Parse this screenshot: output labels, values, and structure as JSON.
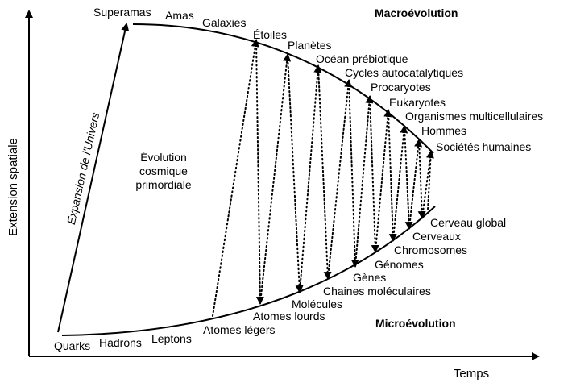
{
  "axes": {
    "y_title": "Extension spatiale",
    "x_title": "Temps"
  },
  "headers": {
    "macro": "Macroévolution",
    "micro": "Microévolution"
  },
  "expansion_label": "Expansion de l'Univers",
  "center_label": [
    "Évolution",
    "cosmique",
    "primordiale"
  ],
  "upper_labels": [
    "Superamas",
    "Amas",
    "Galaxies",
    "Étoiles",
    "Planètes",
    "Océan prébiotique",
    "Cycles autocatalytiques",
    "Procaryotes",
    "Eukaryotes",
    "Organismes multicellulaires",
    "Hommes",
    "Sociétés humaines"
  ],
  "lower_labels": [
    "Quarks",
    "Hadrons",
    "Leptons",
    "Atomes légers",
    "Atomes lourds",
    "Molécules",
    "Chaines moléculaires",
    "Gènes",
    "Génomes",
    "Chromosomes",
    "Cerveaux",
    "Cerveau global"
  ]
}
